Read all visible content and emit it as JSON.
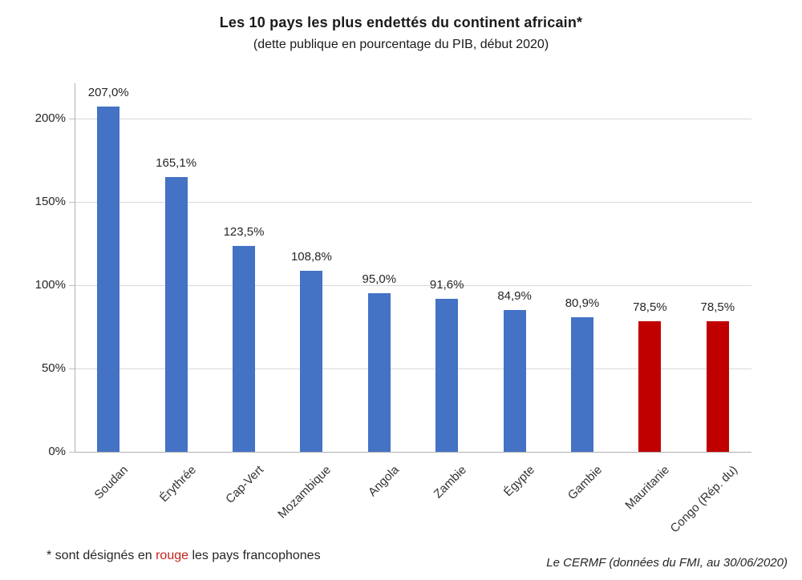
{
  "title": "Les 10 pays les plus endettés du continent africain*",
  "subtitle": "(dette publique en pourcentage du PIB, début 2020)",
  "footnote": {
    "prefix": "* sont désignés en ",
    "highlight": "rouge",
    "suffix": " les pays francophones"
  },
  "credit": "Le CERMF (données du FMI, au 30/06/2020)",
  "colors": {
    "bar_blue": "#4472C4",
    "bar_red": "#C00000",
    "note_red": "#C5241B",
    "gridline": "#D9D9D9",
    "axis": "#B0B0B0"
  },
  "chart_data": {
    "type": "bar",
    "title": "Les 10 pays les plus endettés du continent africain*",
    "subtitle": "(dette publique en pourcentage du PIB, début 2020)",
    "categories": [
      "Soudan",
      "Érythrée",
      "Cap-Vert",
      "Mozambique",
      "Angola",
      "Zambie",
      "Égypte",
      "Gambie",
      "Mauritanie",
      "Congo (Rép. du)"
    ],
    "values": [
      207.0,
      165.1,
      123.5,
      108.8,
      95.0,
      91.6,
      84.9,
      80.9,
      78.5,
      78.5
    ],
    "value_labels": [
      "207,0%",
      "165,1%",
      "123,5%",
      "108,8%",
      "95,0%",
      "91,6%",
      "84,9%",
      "80,9%",
      "78,5%",
      "78,5%"
    ],
    "bar_colors": [
      "blue",
      "blue",
      "blue",
      "blue",
      "blue",
      "blue",
      "blue",
      "blue",
      "red",
      "red"
    ],
    "xlabel": "",
    "ylabel": "",
    "y_ticks": [
      "0%",
      "50%",
      "100%",
      "150%",
      "200%"
    ],
    "y_tick_values": [
      0,
      50,
      100,
      150,
      200
    ],
    "ylim": [
      0,
      221
    ],
    "grid": true,
    "legend": false
  }
}
